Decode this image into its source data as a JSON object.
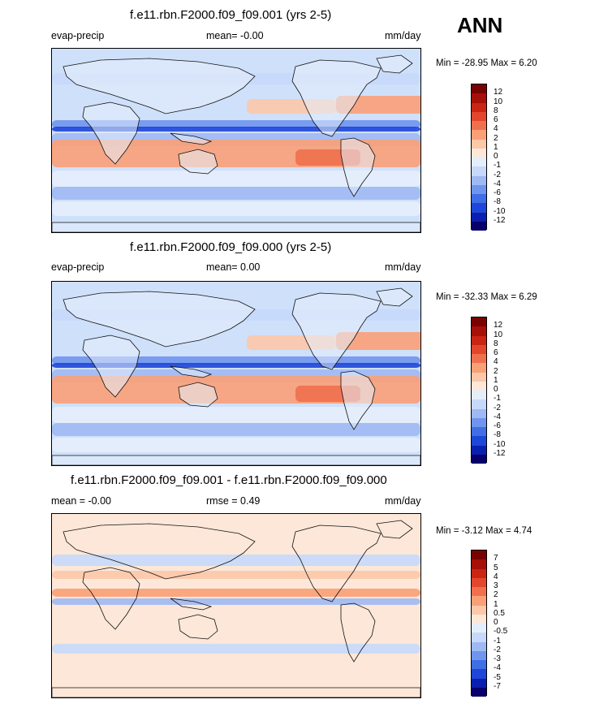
{
  "page": {
    "season": "ANN"
  },
  "colors": {
    "levels_abs": [
      "#08006b",
      "#0a1fb0",
      "#1e46d8",
      "#3f6ee5",
      "#6f95ee",
      "#9fb9f4",
      "#c6d9fb",
      "#e4eefb",
      "#fde7d8",
      "#fcc8a8",
      "#f9a077",
      "#f0704e",
      "#e2462c",
      "#c92512",
      "#a51007",
      "#780200"
    ],
    "land": "#e6eefb",
    "ocean": "#cfe0fa",
    "coast": "#111111"
  },
  "panels": [
    {
      "title": "f.e11.rbn.F2000.f09_f09.001 (yrs 2-5)",
      "left": "evap-precip",
      "center": "mean=  -0.00",
      "right": "mm/day",
      "minmax": "Min = -28.95 Max =   6.20",
      "cbar_labels": [
        "12",
        "10",
        "8",
        "6",
        "4",
        "2",
        "1",
        "0",
        "-1",
        "-2",
        "-4",
        "-6",
        "-8",
        "-10",
        "-12"
      ]
    },
    {
      "title": "f.e11.rbn.F2000.f09_f09.000 (yrs 2-5)",
      "left": "evap-precip",
      "center": "mean=   0.00",
      "right": "mm/day",
      "minmax": "Min = -32.33 Max =   6.29",
      "cbar_labels": [
        "12",
        "10",
        "8",
        "6",
        "4",
        "2",
        "1",
        "0",
        "-1",
        "-2",
        "-4",
        "-6",
        "-8",
        "-10",
        "-12"
      ]
    },
    {
      "title": "f.e11.rbn.F2000.f09_f09.001 - f.e11.rbn.F2000.f09_f09.000",
      "left": "mean = -0.00",
      "center": "rmse =  0.49",
      "right": "mm/day",
      "minmax": "Min =  -3.12 Max =   4.74",
      "cbar_labels": [
        "7",
        "5",
        "4",
        "3",
        "2",
        "1",
        "0.5",
        "0",
        "-0.5",
        "-1",
        "-2",
        "-3",
        "-4",
        "-5",
        "-7"
      ]
    }
  ]
}
